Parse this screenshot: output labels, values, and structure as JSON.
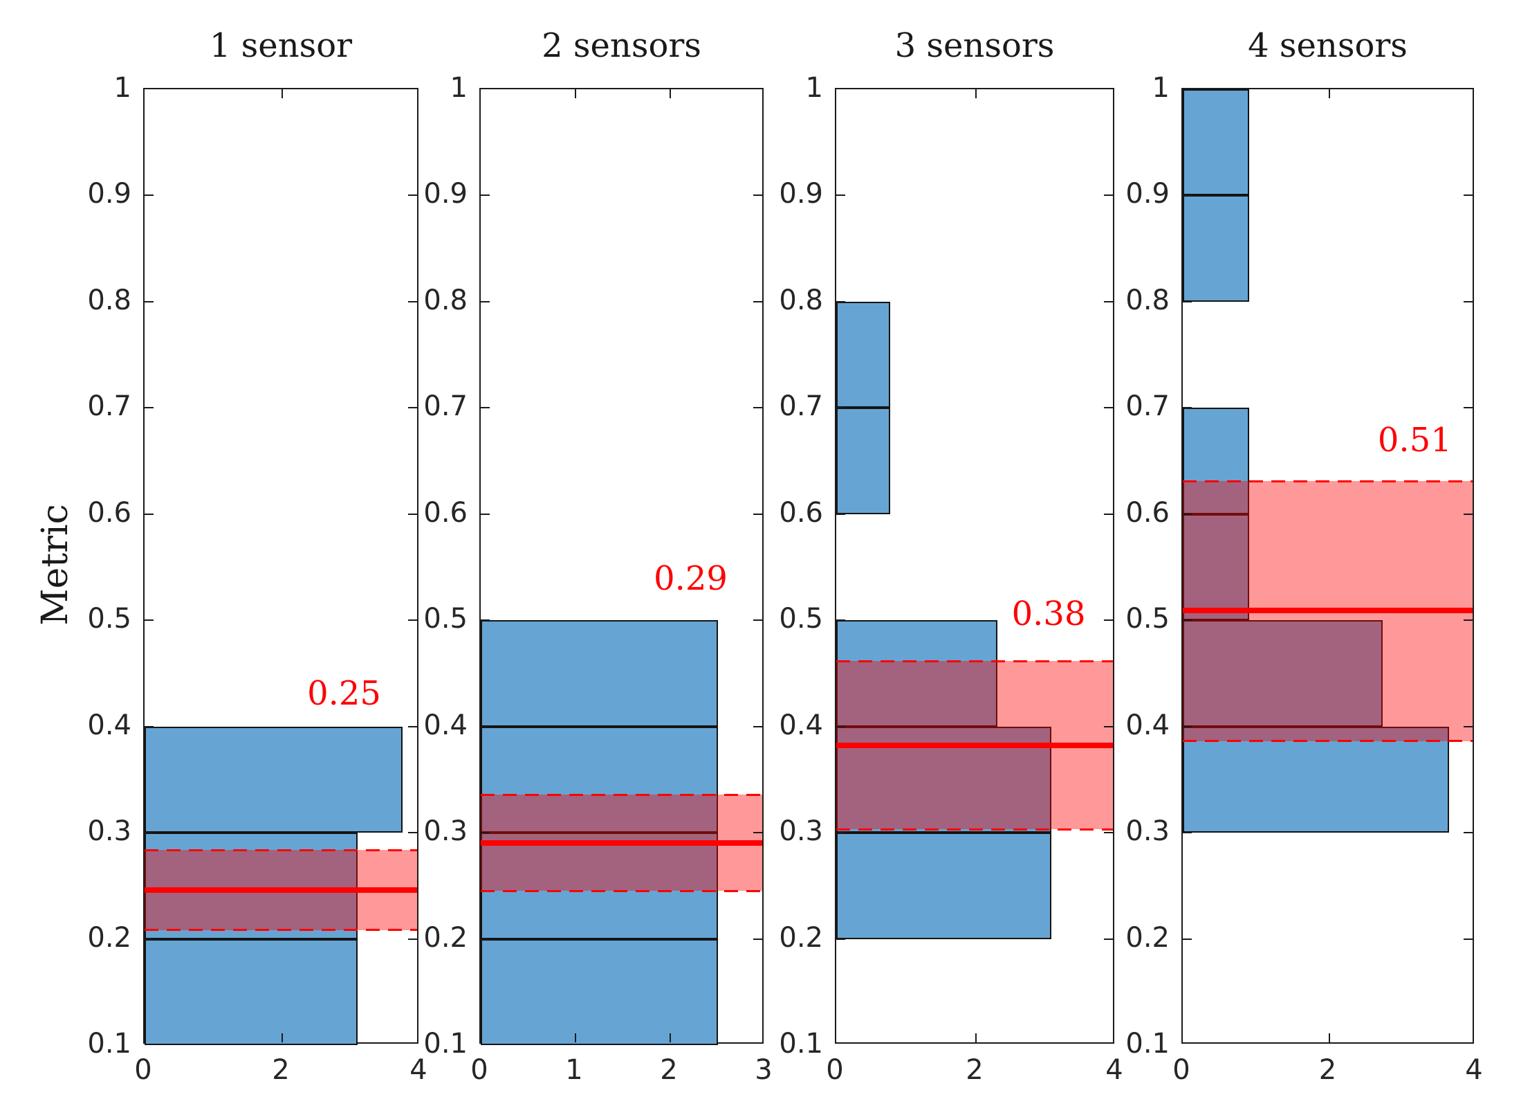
{
  "chart_data": {
    "type": "bar",
    "subtype": "horizontal-histogram-small-multiples",
    "ylabel": "Metric",
    "ylim": [
      0.1,
      1
    ],
    "yticks": {
      "values": [
        1,
        0.9,
        0.8,
        0.7,
        0.6,
        0.5,
        0.4,
        0.3,
        0.2,
        0.1
      ],
      "labels": [
        "1",
        "0.9",
        "0.8",
        "0.7",
        "0.6",
        "0.5",
        "0.4",
        "0.3",
        "0.2",
        "0.1"
      ]
    },
    "colors": {
      "bar_fill": "#66A5D3",
      "bar_edge": "#141414",
      "axis": "#1b1b1b",
      "tick_text": "#262626",
      "title_text": "#1a1a1a",
      "band_color": "#FF0000",
      "band_alpha": 0.4,
      "mean_line": "#FF0000",
      "annotation_text": "#FF0000"
    },
    "legend": "off",
    "grid": "off",
    "panels": [
      {
        "title": "1 sensor",
        "xlim": [
          0,
          4
        ],
        "xticks": {
          "values": [
            0,
            2,
            4
          ],
          "labels": [
            "0",
            "2",
            "4"
          ]
        },
        "bins": [
          {
            "from": 0.1,
            "to": 0.2,
            "value": 3.1
          },
          {
            "from": 0.2,
            "to": 0.3,
            "value": 3.1
          },
          {
            "from": 0.3,
            "to": 0.4,
            "value": 3.75
          }
        ],
        "mean": 0.246,
        "band": [
          0.208,
          0.284
        ],
        "annotation": {
          "text": "0.25",
          "x": 2.92,
          "y": 0.43
        }
      },
      {
        "title": "2 sensors",
        "xlim": [
          0,
          3
        ],
        "xticks": {
          "values": [
            0,
            1,
            2,
            3
          ],
          "labels": [
            "0",
            "1",
            "2",
            "3"
          ]
        },
        "bins": [
          {
            "from": 0.1,
            "to": 0.2,
            "value": 2.5
          },
          {
            "from": 0.2,
            "to": 0.3,
            "value": 2.5
          },
          {
            "from": 0.3,
            "to": 0.4,
            "value": 2.5
          },
          {
            "from": 0.4,
            "to": 0.5,
            "value": 2.5
          }
        ],
        "mean": 0.29,
        "band": [
          0.245,
          0.336
        ],
        "annotation": {
          "text": "0.29",
          "x": 2.23,
          "y": 0.538
        }
      },
      {
        "title": "3 sensors",
        "xlim": [
          0,
          4
        ],
        "xticks": {
          "values": [
            0,
            2,
            4
          ],
          "labels": [
            "0",
            "2",
            "4"
          ]
        },
        "bins": [
          {
            "from": 0.2,
            "to": 0.3,
            "value": 3.08
          },
          {
            "from": 0.3,
            "to": 0.4,
            "value": 3.08
          },
          {
            "from": 0.4,
            "to": 0.5,
            "value": 2.31
          },
          {
            "from": 0.6,
            "to": 0.7,
            "value": 0.77
          },
          {
            "from": 0.7,
            "to": 0.8,
            "value": 0.77
          }
        ],
        "mean": 0.382,
        "band": [
          0.303,
          0.462
        ],
        "annotation": {
          "text": "0.38",
          "x": 3.06,
          "y": 0.505
        }
      },
      {
        "title": "4 sensors",
        "xlim": [
          0,
          4
        ],
        "xticks": {
          "values": [
            0,
            2,
            4
          ],
          "labels": [
            "0",
            "2",
            "4"
          ]
        },
        "bins": [
          {
            "from": 0.3,
            "to": 0.4,
            "value": 3.64
          },
          {
            "from": 0.4,
            "to": 0.5,
            "value": 2.73
          },
          {
            "from": 0.5,
            "to": 0.6,
            "value": 0.91
          },
          {
            "from": 0.6,
            "to": 0.7,
            "value": 0.91
          },
          {
            "from": 0.8,
            "to": 0.9,
            "value": 0.91
          },
          {
            "from": 0.9,
            "to": 1.0,
            "value": 0.91
          }
        ],
        "mean": 0.509,
        "band": [
          0.386,
          0.631
        ],
        "annotation": {
          "text": "0.51",
          "x": 3.19,
          "y": 0.668
        }
      }
    ]
  }
}
